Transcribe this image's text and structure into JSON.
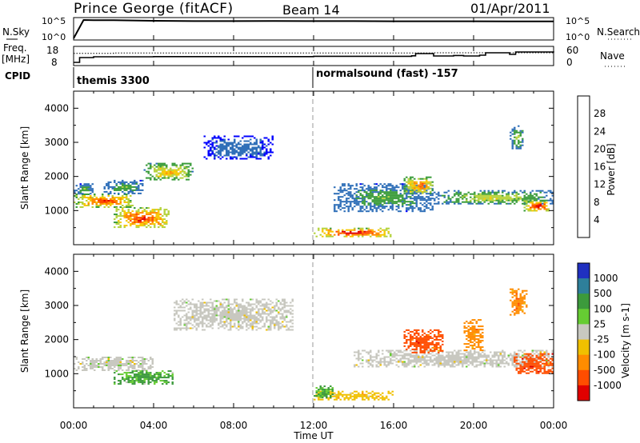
{
  "header": {
    "station": "Prince George (fitACF)",
    "beam": "Beam 14",
    "date": "01/Apr/2011"
  },
  "nsky_panel": {
    "left_label": "N.Sky",
    "right_label": "N.Search",
    "left_ticks": [
      "10^5",
      "10^0"
    ],
    "right_ticks": [
      "10^5",
      "10^0"
    ]
  },
  "freq_panel": {
    "left_label_1": "Freq.",
    "left_label_2": "[MHz]",
    "right_label": "Nave",
    "left_ticks": [
      "18",
      "8"
    ],
    "right_ticks": [
      "60",
      "0"
    ]
  },
  "cpid": {
    "label": "CPID",
    "segments": [
      {
        "start": 0,
        "text": "themis 3300"
      },
      {
        "start": 12,
        "text": "normalsound (fast) -157"
      }
    ]
  },
  "colors": {
    "power": [
      "#0000ff",
      "#2f6fb8",
      "#3a9c3a",
      "#b5d23c",
      "#f7c800",
      "#ff8a00",
      "#ff4a00",
      "#e00000"
    ],
    "velocity": [
      "#2030c0",
      "#2e7f9a",
      "#3c9a3c",
      "#66cc33",
      "#c8c8c0",
      "#f0c000",
      "#ff8c00",
      "#ff4d00",
      "#e00000"
    ],
    "scatter_gray": "#c8c8c0"
  },
  "x_axis": {
    "label": "Time UT",
    "ticks": [
      "00:00",
      "04:00",
      "08:00",
      "12:00",
      "16:00",
      "20:00",
      "00:00"
    ]
  },
  "power_panel": {
    "ylabel": "Slant Range [km]",
    "colorbar_title": "Power [dB]",
    "colorbar_ticks": [
      "4",
      "8",
      "12",
      "16",
      "20",
      "24",
      "28"
    ],
    "y_ticks": [
      "1000",
      "2000",
      "3000",
      "4000"
    ]
  },
  "velocity_panel": {
    "ylabel": "Slant Range [km]",
    "colorbar_title": "Velocity [m s-1]",
    "colorbar_ticks": [
      "1000",
      "500",
      "100",
      "25",
      "-25",
      "-100",
      "-500",
      "-1000"
    ],
    "y_ticks": [
      "1000",
      "2000",
      "3000",
      "4000"
    ]
  },
  "chart_data": [
    {
      "type": "line",
      "title": "N.Sky",
      "x_range_hours": [
        0,
        24
      ],
      "y_scale": "log",
      "series": [
        {
          "name": "N.Sky",
          "x": [
            0.0,
            0.5,
            1,
            2,
            4,
            6,
            8,
            10,
            12,
            14,
            16,
            18,
            20,
            22,
            24
          ],
          "y": [
            1,
            100000,
            90000,
            85000,
            60000,
            50000,
            50000,
            55000,
            50000,
            50000,
            45000,
            45000,
            45000,
            40000,
            40000
          ]
        }
      ]
    },
    {
      "type": "line",
      "title": "Freq. / Nave",
      "x_range_hours": [
        0,
        24
      ],
      "ylim_left": [
        8,
        18
      ],
      "ylim_right": [
        0,
        60
      ],
      "series": [
        {
          "name": "Freq.",
          "x": [
            0.0,
            0.3,
            1,
            4,
            8,
            12,
            16.9,
            17.1,
            18,
            19,
            19.5,
            20.3,
            20.6,
            21.8,
            22.1,
            24
          ],
          "y": [
            9,
            12,
            12.5,
            12.6,
            12.6,
            12.8,
            13.1,
            14.5,
            13.0,
            13.3,
            13.0,
            13.5,
            15.0,
            14.0,
            15.5,
            15.2
          ]
        },
        {
          "name": "Nave",
          "x": [
            0,
            2,
            6,
            10,
            14,
            18,
            22,
            24
          ],
          "y": [
            40,
            41,
            41,
            41,
            41,
            42,
            42,
            42
          ]
        }
      ]
    },
    {
      "type": "heatmap",
      "title": "Power [dB]",
      "x_range_hours": [
        0,
        24
      ],
      "ylim": [
        0,
        4500
      ],
      "ylabel": "Slant Range [km]",
      "color_scale": [
        0,
        32
      ],
      "regions": [
        {
          "t": [
            0.0,
            3.0
          ],
          "range_km": [
            1100,
            1500
          ],
          "power_db": 24
        },
        {
          "t": [
            0.0,
            1.0
          ],
          "range_km": [
            1500,
            1800
          ],
          "power_db": 10
        },
        {
          "t": [
            1.5,
            3.5
          ],
          "range_km": [
            1500,
            1900
          ],
          "power_db": 10
        },
        {
          "t": [
            2.0,
            4.8
          ],
          "range_km": [
            500,
            1100
          ],
          "power_db": 26
        },
        {
          "t": [
            3.5,
            6.0
          ],
          "range_km": [
            1900,
            2400
          ],
          "power_db": 18
        },
        {
          "t": [
            6.5,
            10.0
          ],
          "range_km": [
            2500,
            3200
          ],
          "power_db": 6
        },
        {
          "t": [
            12.0,
            16.0
          ],
          "range_km": [
            250,
            500
          ],
          "power_db": 28
        },
        {
          "t": [
            13.0,
            18.0
          ],
          "range_km": [
            1000,
            1800
          ],
          "power_db": 10
        },
        {
          "t": [
            16.5,
            18.0
          ],
          "range_km": [
            1500,
            2000
          ],
          "power_db": 22
        },
        {
          "t": [
            18.0,
            24.0
          ],
          "range_km": [
            1200,
            1600
          ],
          "power_db": 14
        },
        {
          "t": [
            22.5,
            23.8
          ],
          "range_km": [
            1000,
            1300
          ],
          "power_db": 28
        },
        {
          "t": [
            21.8,
            22.5
          ],
          "range_km": [
            2800,
            3500
          ],
          "power_db": 12
        }
      ]
    },
    {
      "type": "heatmap",
      "title": "Velocity [m s-1]",
      "x_range_hours": [
        0,
        24
      ],
      "ylim": [
        0,
        4500
      ],
      "ylabel": "Slant Range [km]",
      "color_scale": [
        -1000,
        1000
      ],
      "regions": [
        {
          "t": [
            0.0,
            4.0
          ],
          "range_km": [
            1100,
            1500
          ],
          "velocity_ms": 0
        },
        {
          "t": [
            2.0,
            5.0
          ],
          "range_km": [
            700,
            1100
          ],
          "velocity_ms": 100
        },
        {
          "t": [
            5.0,
            11.0
          ],
          "range_km": [
            2300,
            3200
          ],
          "velocity_ms": 0
        },
        {
          "t": [
            12.0,
            16.0
          ],
          "range_km": [
            250,
            500
          ],
          "velocity_ms": -50
        },
        {
          "t": [
            12.0,
            13.0
          ],
          "range_km": [
            300,
            700
          ],
          "velocity_ms": 100
        },
        {
          "t": [
            14.0,
            24.0
          ],
          "range_km": [
            1200,
            1700
          ],
          "velocity_ms": 0
        },
        {
          "t": [
            16.5,
            18.5
          ],
          "range_km": [
            1600,
            2300
          ],
          "velocity_ms": -500
        },
        {
          "t": [
            19.5,
            20.5
          ],
          "range_km": [
            1700,
            2600
          ],
          "velocity_ms": -400
        },
        {
          "t": [
            22.0,
            24.0
          ],
          "range_km": [
            1000,
            1600
          ],
          "velocity_ms": -500
        },
        {
          "t": [
            21.8,
            22.6
          ],
          "range_km": [
            2700,
            3500
          ],
          "velocity_ms": -300
        }
      ]
    }
  ]
}
